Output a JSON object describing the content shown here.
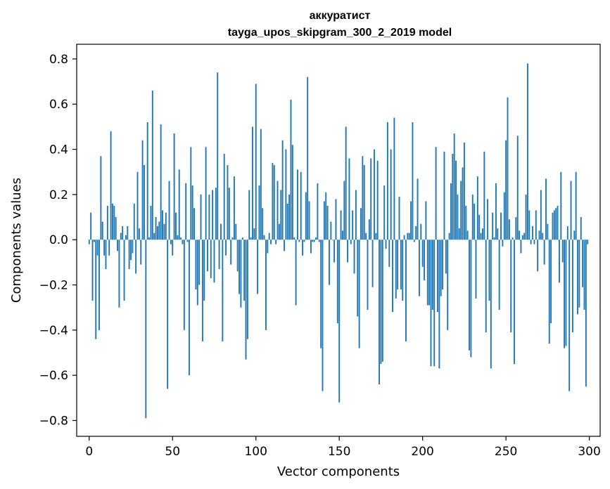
{
  "chart_data": {
    "type": "bar",
    "title_line1": "аккуратист",
    "title_line2": "tayga_upos_skipgram_300_2_2019 model",
    "xlabel": "Vector components",
    "ylabel": "Components values",
    "xlim": [
      -7.5,
      306.5
    ],
    "ylim": [
      -0.87,
      0.865
    ],
    "xticks": [
      0,
      50,
      100,
      150,
      200,
      250,
      300
    ],
    "xtick_labels": [
      "0",
      "50",
      "100",
      "150",
      "200",
      "250",
      "300"
    ],
    "yticks": [
      -0.8,
      -0.6,
      -0.4,
      -0.2,
      0.0,
      0.2,
      0.4,
      0.6,
      0.8
    ],
    "ytick_labels": [
      "−0.8",
      "−0.6",
      "−0.4",
      "−0.2",
      "0.0",
      "0.2",
      "0.4",
      "0.6",
      "0.8"
    ],
    "bar_color": "#1f77b4",
    "values": [
      -0.02,
      0.12,
      -0.27,
      -0.01,
      -0.44,
      -0.07,
      -0.4,
      0.37,
      0.08,
      -0.07,
      -0.13,
      0.15,
      -0.07,
      0.48,
      0.16,
      0.15,
      0.1,
      -0.05,
      -0.3,
      0.03,
      0.06,
      -0.27,
      0.02,
      0.06,
      -0.13,
      -0.09,
      -0.06,
      0.16,
      -0.15,
      0.3,
      0.05,
      -0.11,
      0.44,
      0.33,
      -0.79,
      0.52,
      0.01,
      0.15,
      0.66,
      0.03,
      0.1,
      0.06,
      0.08,
      0.51,
      0.13,
      0.07,
      0.12,
      -0.66,
      0.26,
      -0.02,
      -0.07,
      0.47,
      0.12,
      0.02,
      0.31,
      0.01,
      -0.02,
      -0.4,
      0.25,
      -0.01,
      -0.6,
      0.41,
      0.24,
      0.14,
      -0.22,
      -0.29,
      -0.2,
      0.2,
      -0.45,
      -0.27,
      0.41,
      -0.14,
      0.2,
      -0.17,
      0.22,
      -0.19,
      0.23,
      0.74,
      -0.13,
      0.07,
      -0.45,
      0.38,
      -0.07,
      0.33,
      0.23,
      -0.11,
      0.01,
      0.28,
      0.07,
      -0.14,
      -0.24,
      -0.3,
      0.01,
      -0.27,
      -0.53,
      -0.44,
      0.22,
      0.01,
      0.5,
      0.05,
      0.69,
      -0.24,
      0.24,
      0.49,
      0.14,
      0.02,
      -0.4,
      -0.06,
      0.03,
      -0.02,
      0.34,
      0.33,
      -0.02,
      0.26,
      0.07,
      0.22,
      0.44,
      -0.05,
      0.4,
      0.16,
      0.2,
      0.62,
      0.42,
      0.01,
      -0.29,
      0.31,
      -0.01,
      0.3,
      -0.07,
      -0.01,
      0.21,
      0.72,
      0.17,
      -0.06,
      -0.01,
      -0.01,
      0.01,
      0.25,
      -0.01,
      -0.48,
      -0.67,
      0.17,
      0.21,
      0.15,
      -0.2,
      0.08,
      0.0,
      -0.1,
      0.18,
      -0.37,
      -0.72,
      0.13,
      0.04,
      0.26,
      0.5,
      -0.1,
      0.36,
      -0.02,
      0.13,
      -0.15,
      0.22,
      -0.34,
      -0.48,
      0.14,
      0.37,
      0.33,
      0.03,
      -0.31,
      0.09,
      0.36,
      -0.21,
      0.4,
      0.03,
      0.35,
      -0.64,
      -0.55,
      -0.54,
      0.24,
      -0.04,
      0.52,
      -0.12,
      0.4,
      -0.32,
      0.54,
      -0.26,
      -0.22,
      0.19,
      -0.22,
      -0.27,
      0.02,
      -0.45,
      0.03,
      0.03,
      0.17,
      0.52,
      -0.01,
      0.06,
      0.27,
      -0.25,
      0.07,
      -0.12,
      -0.18,
      0.17,
      -0.29,
      -0.29,
      -0.56,
      -0.31,
      -0.56,
      0.41,
      -0.32,
      -0.57,
      -0.25,
      -0.22,
      0.39,
      -0.15,
      -0.4,
      0.03,
      0.25,
      0.38,
      0.47,
      0.35,
      0.2,
      0.05,
      0.26,
      0.32,
      0.43,
      0.15,
      0.04,
      -0.49,
      -0.52,
      0.2,
      0.16,
      -0.26,
      0.28,
      0.11,
      0.03,
      0.05,
      0.39,
      -0.41,
      0.18,
      -0.27,
      -0.57,
      0.12,
      0.01,
      0.25,
      0.05,
      -0.31,
      0.12,
      -0.03,
      0.21,
      0.44,
      0.63,
      0.09,
      -0.41,
      0.01,
      -0.55,
      0.1,
      0.46,
      0.04,
      -0.06,
      0.02,
      0.03,
      0.2,
      0.78,
      0.13,
      -0.02,
      0.06,
      -0.02,
      0.13,
      -0.14,
      0.04,
      0.22,
      0.03,
      -0.11,
      0.27,
      0.07,
      -0.46,
      -0.37,
      0.12,
      0.13,
      0.14,
      0.15,
      -0.19,
      0.3,
      -0.1,
      -0.48,
      -0.47,
      0.06,
      -0.67,
      0.26,
      -0.41,
      0.04,
      0.3,
      -0.33,
      -0.3,
      0.1,
      -0.21,
      -0.31,
      -0.65,
      -0.02
    ]
  }
}
